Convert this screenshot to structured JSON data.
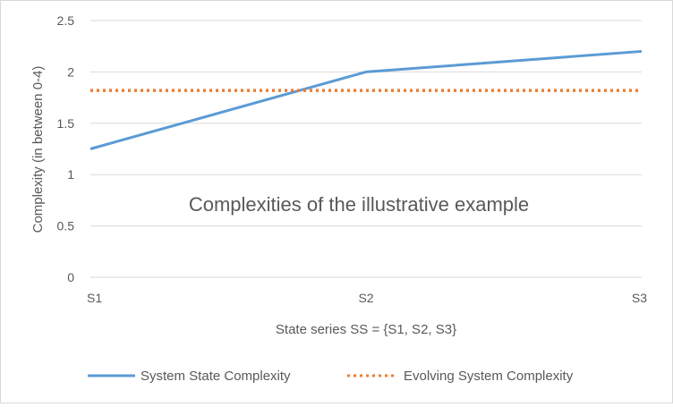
{
  "chart_data": {
    "type": "line",
    "title": "Complexities of the illustrative example",
    "xlabel": "State series SS = {S1, S2, S3}",
    "ylabel": "Complexity (in between 0-4)",
    "categories": [
      "S1",
      "S2",
      "S3"
    ],
    "ylim": [
      0,
      2.5
    ],
    "yticks": [
      "0",
      "0.5",
      "1",
      "1.5",
      "2",
      "2.5"
    ],
    "grid": true,
    "legend_position": "bottom",
    "series": [
      {
        "name": "System State Complexity",
        "values": [
          1.25,
          2.0,
          2.2
        ],
        "color": "#5b9bd5",
        "style": "solid"
      },
      {
        "name": "Evolving System Complexity",
        "values": [
          1.82,
          1.82,
          1.82
        ],
        "color": "#ed7d31",
        "style": "dotted"
      }
    ]
  }
}
